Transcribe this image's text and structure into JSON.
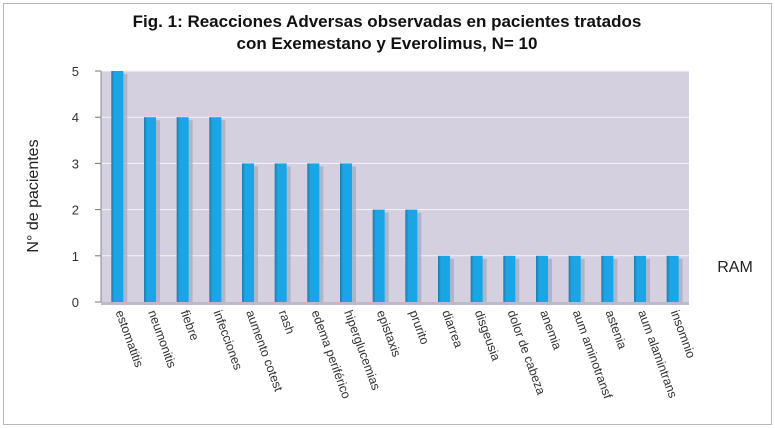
{
  "chart_data": {
    "type": "bar",
    "title_lines": [
      "Fig. 1: Reacciones Adversas observadas en pacientes tratados",
      "con Exemestano y Everolimus, N= 10"
    ],
    "xlabel": "RAM",
    "ylabel": "N° de pacientes",
    "ylim": [
      0,
      5
    ],
    "yticks": [
      "0",
      "1",
      "2",
      "3",
      "4",
      "5"
    ],
    "grid": true,
    "categories": [
      "estomatitis",
      "neumonitis",
      "fiebre",
      "infecciones",
      "aumento cotest",
      "rash",
      "edema periférico",
      "hiperglucemias",
      "epistaxis",
      "prurito",
      "diarrea",
      "disgeusia",
      "dolor de cabeza",
      "anemia",
      "aum aminotransf",
      "astenia",
      "aum alamintrans",
      "insomnio"
    ],
    "values": [
      5,
      4,
      4,
      4,
      3,
      3,
      3,
      3,
      2,
      2,
      1,
      1,
      1,
      1,
      1,
      1,
      1,
      1
    ],
    "colors": {
      "bar": "#1aa6e6",
      "bar_dark": "#0b7fb6",
      "plot_bg": "#d4d0df",
      "grid": "#f4f4f8",
      "floor": "#bdb9c8"
    }
  }
}
